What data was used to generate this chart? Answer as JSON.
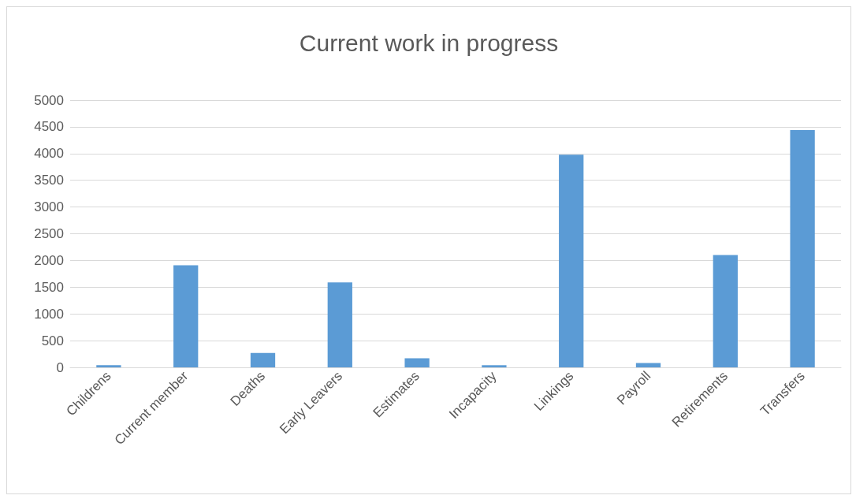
{
  "chart_data": {
    "type": "bar",
    "title": "Current work in progress",
    "categories": [
      "Childrens",
      "Current member",
      "Deaths",
      "Early Leavers",
      "Estimates",
      "Incapacity",
      "Linkings",
      "Payroll",
      "Retirements",
      "Transfers"
    ],
    "values": [
      40,
      1910,
      270,
      1590,
      170,
      40,
      3980,
      80,
      2100,
      4440
    ],
    "color": "#5b9bd5",
    "ylim": [
      0,
      5000
    ],
    "yticks": [
      0,
      500,
      1000,
      1500,
      2000,
      2500,
      3000,
      3500,
      4000,
      4500,
      5000
    ],
    "grid": "y"
  }
}
